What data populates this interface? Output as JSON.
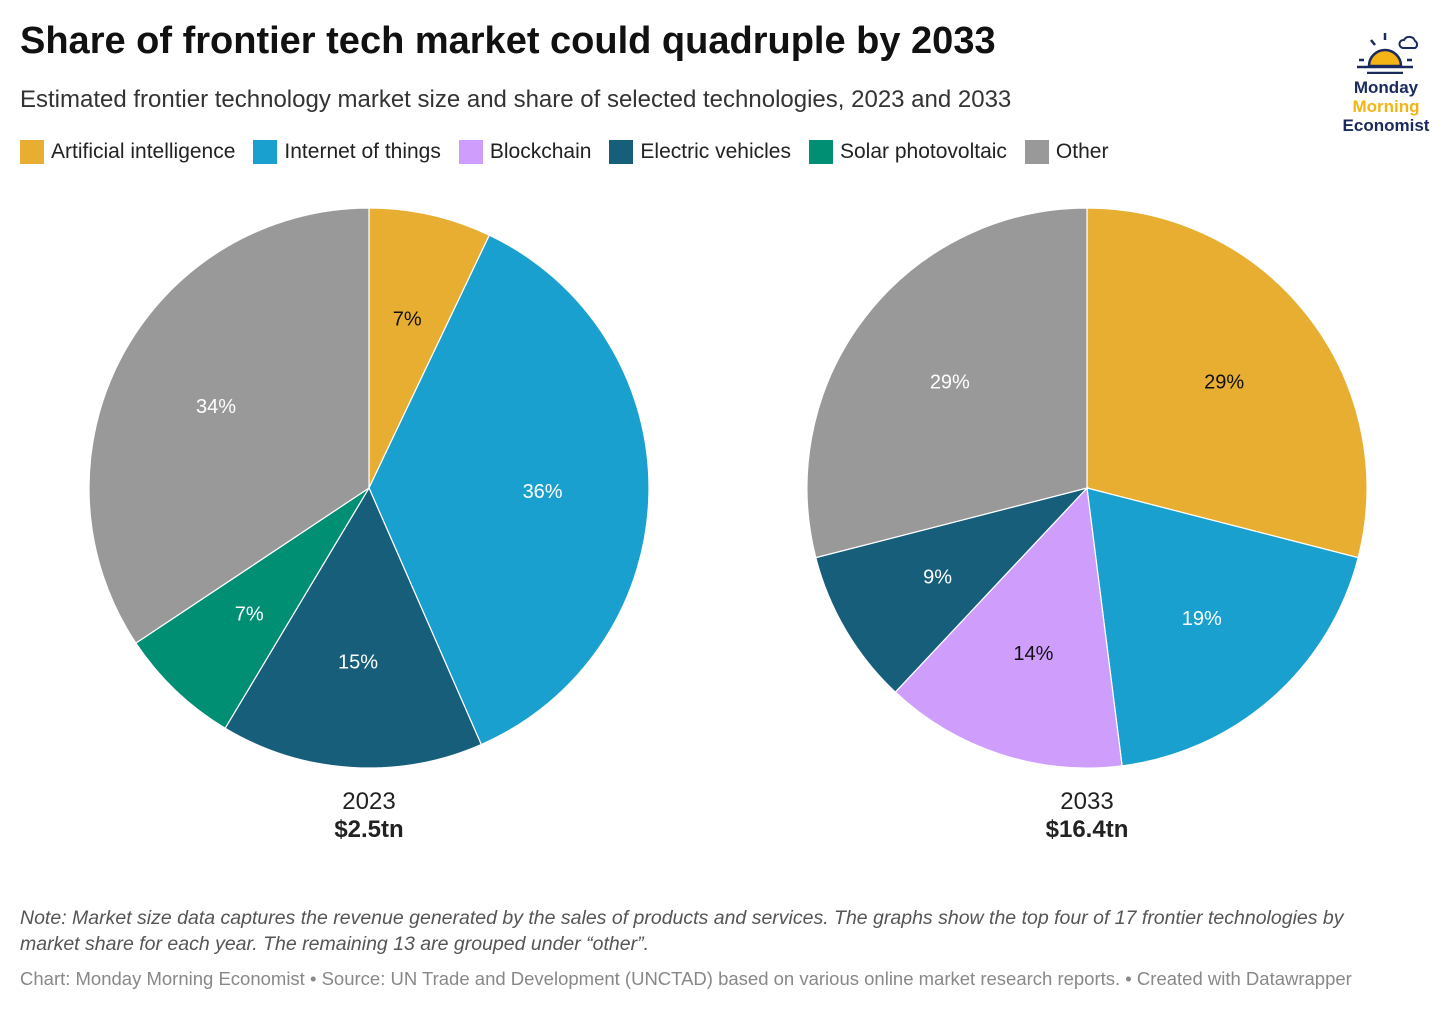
{
  "title": "Share of frontier tech market could quadruple by 2033",
  "subtitle": "Estimated frontier technology market size and share of selected technologies, 2023 and 2033",
  "logo": {
    "line1": "Monday",
    "line2": "Morning",
    "line3": "Economist"
  },
  "note": "Note: Market size data captures the revenue generated by the sales of products and services. The graphs show the top four of 17 frontier technologies by market share for each year. The remaining 13 are grouped under “other”.",
  "source": "Chart: Monday Morning Economist • Source: UN Trade and Development (UNCTAD) based on various online market research reports. • Created with Datawrapper",
  "chart_data": {
    "type": "pie",
    "legend": [
      {
        "name": "Artificial intelligence",
        "color": "#e8ae31"
      },
      {
        "name": "Internet of things",
        "color": "#19a0cf"
      },
      {
        "name": "Blockchain",
        "color": "#cf9efc"
      },
      {
        "name": "Electric vehicles",
        "color": "#165e79"
      },
      {
        "name": "Solar photovoltaic",
        "color": "#008f73"
      },
      {
        "name": "Other",
        "color": "#999999"
      }
    ],
    "charts": [
      {
        "year": "2023",
        "total": "$2.5tn",
        "slices": [
          {
            "name": "Artificial intelligence",
            "value": 7,
            "label": "7%",
            "labelColor": "#111"
          },
          {
            "name": "Internet of things",
            "value": 36,
            "label": "36%",
            "labelColor": "#fff"
          },
          {
            "name": "Electric vehicles",
            "value": 15,
            "label": "15%",
            "labelColor": "#fff"
          },
          {
            "name": "Solar photovoltaic",
            "value": 7,
            "label": "7%",
            "labelColor": "#fff"
          },
          {
            "name": "Other",
            "value": 34,
            "label": "34%",
            "labelColor": "#fff"
          }
        ]
      },
      {
        "year": "2033",
        "total": "$16.4tn",
        "slices": [
          {
            "name": "Artificial intelligence",
            "value": 29,
            "label": "29%",
            "labelColor": "#111"
          },
          {
            "name": "Internet of things",
            "value": 19,
            "label": "19%",
            "labelColor": "#fff"
          },
          {
            "name": "Blockchain",
            "value": 14,
            "label": "14%",
            "labelColor": "#111"
          },
          {
            "name": "Electric vehicles",
            "value": 9,
            "label": "9%",
            "labelColor": "#fff"
          },
          {
            "name": "Other",
            "value": 29,
            "label": "29%",
            "labelColor": "#fff"
          }
        ]
      }
    ]
  }
}
